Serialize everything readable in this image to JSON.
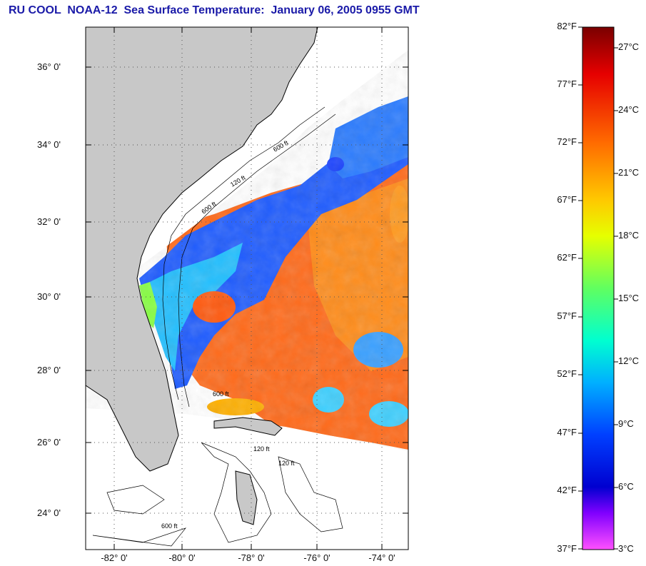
{
  "title": "RU COOL  NOAA-12  Sea Surface Temperature:  January 06, 2005 0955 GMT",
  "map": {
    "lat_labels": [
      "36° 0'",
      "34° 0'",
      "32° 0'",
      "30° 0'",
      "28° 0'",
      "26° 0'",
      "24° 0'"
    ],
    "lon_labels": [
      "-82° 0'",
      "-80° 0'",
      "-78° 0'",
      "-76° 0'",
      "-74° 0'"
    ],
    "contour_labels": [
      "120 ft",
      "600 ft",
      "600 ft",
      "120 ft",
      "600 ft",
      "120 ft",
      "600 ft"
    ],
    "land_color": "#c8c8c8",
    "cloud_color": "#ffffff"
  },
  "colorbar": {
    "fahrenheit": [
      "82°F",
      "77°F",
      "72°F",
      "67°F",
      "62°F",
      "57°F",
      "52°F",
      "47°F",
      "42°F",
      "37°F"
    ],
    "celsius": [
      "27°C",
      "24°C",
      "21°C",
      "18°C",
      "15°C",
      "12°C",
      "9°C",
      "6°C",
      "3°C"
    ],
    "gradient": [
      "#7a0000",
      "#e60000",
      "#ff7800",
      "#ffc800",
      "#e6ff00",
      "#80ff40",
      "#00ffc0",
      "#00c8ff",
      "#0050ff",
      "#0000c8",
      "#8800ff",
      "#ff40ff"
    ]
  }
}
